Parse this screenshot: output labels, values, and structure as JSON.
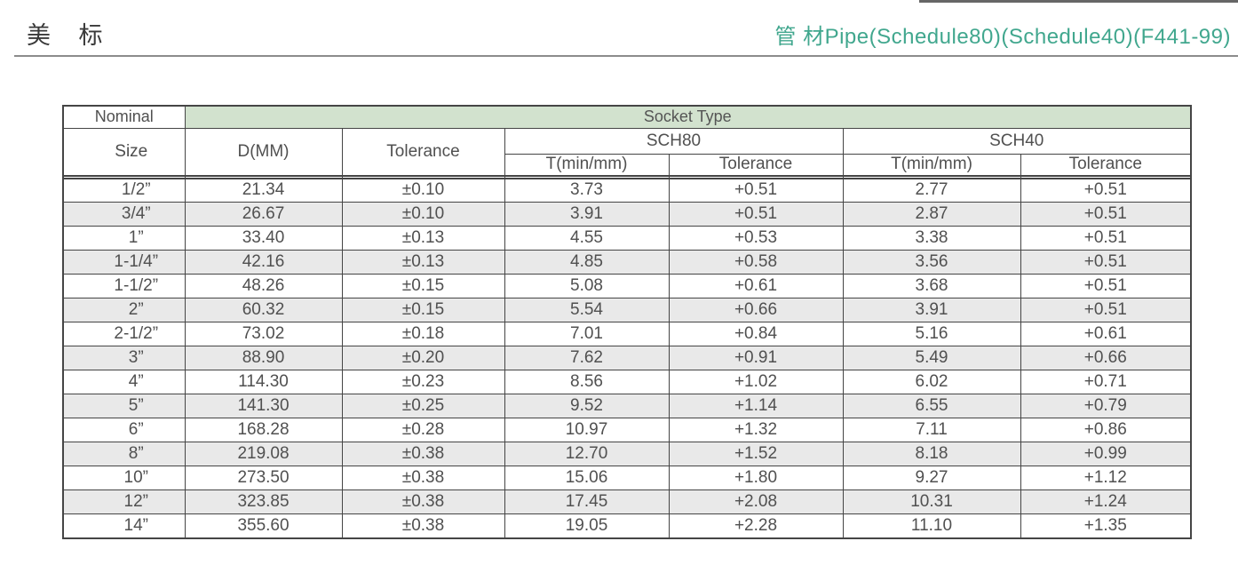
{
  "page": {
    "title_cn": "美 标",
    "subtitle": "管 材Pipe(Schedule80)(Schedule40)(F441-99)"
  },
  "colors": {
    "accent": "#41a78e",
    "band": "#d2e2ce",
    "row_alt": "#e9e9e9",
    "border": "#454545",
    "text": "#505050"
  },
  "table": {
    "header": {
      "nominal": "Nominal",
      "size": "Size",
      "socket_type": "Socket Type",
      "d_mm": "D(MM)",
      "tolerance": "Tolerance",
      "sch80": "SCH80",
      "sch40": "SCH40",
      "t_min": "T(min/mm)"
    },
    "rows": [
      [
        "1/2”",
        "21.34",
        "±0.10",
        "3.73",
        "+0.51",
        "2.77",
        "+0.51"
      ],
      [
        "3/4”",
        "26.67",
        "±0.10",
        "3.91",
        "+0.51",
        "2.87",
        "+0.51"
      ],
      [
        "1”",
        "33.40",
        "±0.13",
        "4.55",
        "+0.53",
        "3.38",
        "+0.51"
      ],
      [
        "1-1/4”",
        "42.16",
        "±0.13",
        "4.85",
        "+0.58",
        "3.56",
        "+0.51"
      ],
      [
        "1-1/2”",
        "48.26",
        "±0.15",
        "5.08",
        "+0.61",
        "3.68",
        "+0.51"
      ],
      [
        "2”",
        "60.32",
        "±0.15",
        "5.54",
        "+0.66",
        "3.91",
        "+0.51"
      ],
      [
        "2-1/2”",
        "73.02",
        "±0.18",
        "7.01",
        "+0.84",
        "5.16",
        "+0.61"
      ],
      [
        "3”",
        "88.90",
        "±0.20",
        "7.62",
        "+0.91",
        "5.49",
        "+0.66"
      ],
      [
        "4”",
        "114.30",
        "±0.23",
        "8.56",
        "+1.02",
        "6.02",
        "+0.71"
      ],
      [
        "5”",
        "141.30",
        "±0.25",
        "9.52",
        "+1.14",
        "6.55",
        "+0.79"
      ],
      [
        "6”",
        "168.28",
        "±0.28",
        "10.97",
        "+1.32",
        "7.11",
        "+0.86"
      ],
      [
        "8”",
        "219.08",
        "±0.38",
        "12.70",
        "+1.52",
        "8.18",
        "+0.99"
      ],
      [
        "10”",
        "273.50",
        "±0.38",
        "15.06",
        "+1.80",
        "9.27",
        "+1.12"
      ],
      [
        "12”",
        "323.85",
        "±0.38",
        "17.45",
        "+2.08",
        "10.31",
        "+1.24"
      ],
      [
        "14”",
        "355.60",
        "±0.38",
        "19.05",
        "+2.28",
        "11.10",
        "+1.35"
      ]
    ]
  }
}
